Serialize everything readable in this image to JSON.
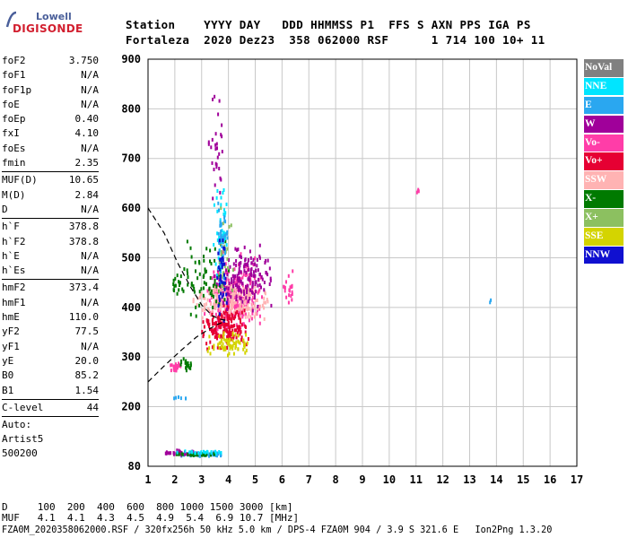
{
  "logo": {
    "line1": "Lowell",
    "line2": "DIGISONDE"
  },
  "header": {
    "line1": "Station    YYYY DAY   DDD HHMMSS P1  FFS S AXN PPS IGA PS",
    "line2": "Fortaleza  2020 Dez23  358 062000 RSF      1 714 100 10+ 11"
  },
  "params_groups": [
    [
      [
        "foF2",
        "3.750"
      ],
      [
        "foF1",
        "N/A"
      ],
      [
        "foF1p",
        "N/A"
      ],
      [
        "foE",
        "N/A"
      ],
      [
        "foEp",
        "0.40"
      ],
      [
        "fxI",
        "4.10"
      ],
      [
        "foEs",
        "N/A"
      ],
      [
        "fmin",
        "2.35"
      ]
    ],
    [
      [
        "MUF(D)",
        "10.65"
      ],
      [
        "M(D)",
        "2.84"
      ],
      [
        "D",
        "N/A"
      ]
    ],
    [
      [
        "h`F",
        "378.8"
      ],
      [
        "h`F2",
        "378.8"
      ],
      [
        "h`E",
        "N/A"
      ],
      [
        "h`Es",
        "N/A"
      ]
    ],
    [
      [
        "hmF2",
        "373.4"
      ],
      [
        "hmF1",
        "N/A"
      ],
      [
        "hmE",
        "110.0"
      ],
      [
        "yF2",
        "77.5"
      ],
      [
        "yF1",
        "N/A"
      ],
      [
        "yE",
        "20.0"
      ],
      [
        "B0",
        "85.2"
      ],
      [
        "B1",
        "1.54"
      ]
    ],
    [
      [
        "C-level",
        "44"
      ]
    ]
  ],
  "autoscaling": {
    "line1": "Auto:",
    "line2": "Artist5",
    "line3": "500200"
  },
  "legend": [
    {
      "label": "NoVal",
      "color": "#808080",
      "text": "#ffffff"
    },
    {
      "label": "NNE",
      "color": "#00e5ff",
      "text": "#ffffff"
    },
    {
      "label": "E",
      "color": "#2aa7f0",
      "text": "#ffffff"
    },
    {
      "label": "W",
      "color": "#a0009a",
      "text": "#ffffff"
    },
    {
      "label": "Vo-",
      "color": "#ff3da8",
      "text": "#ffffff"
    },
    {
      "label": "Vo+",
      "color": "#e60033",
      "text": "#ffffff"
    },
    {
      "label": "SSW",
      "color": "#ffb3b3",
      "text": "#ffffff"
    },
    {
      "label": "X-",
      "color": "#007a00",
      "text": "#ffffff"
    },
    {
      "label": "X+",
      "color": "#8cc060",
      "text": "#ffffff"
    },
    {
      "label": "SSE",
      "color": "#d4d400",
      "text": "#ffffff"
    },
    {
      "label": "NNW",
      "color": "#1010d0",
      "text": "#ffffff"
    }
  ],
  "bottom": {
    "d_line": "D     100  200  400  600  800 1000 1500 3000 [km]",
    "muf_line": "MUF   4.1  4.1  4.3  4.5  4.9  5.4  6.9 10.7 [MHz]",
    "footer": "FZA0M_2020358062000.RSF / 320fx256h 50 kHz 5.0 km / DPS-4 FZA0M 904 / 3.9 S 321.6 E   Ion2Png 1.3.20"
  },
  "chart_data": {
    "type": "scatter",
    "title": "",
    "xlabel": "",
    "ylabel": "",
    "xlim": [
      1,
      17
    ],
    "ylim": [
      80,
      900
    ],
    "x_ticks": [
      1,
      2,
      3,
      4,
      5,
      6,
      7,
      8,
      9,
      10,
      11,
      12,
      13,
      14,
      15,
      16,
      17
    ],
    "y_ticks": [
      80,
      200,
      300,
      400,
      500,
      600,
      700,
      800,
      900
    ],
    "grid": true,
    "legend_position": "right",
    "clusters": [
      {
        "name": "Vo-",
        "color": "#ff3da8",
        "x": [
          3.0,
          5.3
        ],
        "y": [
          330,
          520
        ],
        "n": 260
      },
      {
        "name": "SSW",
        "color": "#ffb3b3",
        "x": [
          2.6,
          5.6
        ],
        "y": [
          360,
          470
        ],
        "n": 200
      },
      {
        "name": "Vo+",
        "color": "#e60033",
        "x": [
          2.9,
          4.8
        ],
        "y": [
          300,
          420
        ],
        "n": 170
      },
      {
        "name": "W",
        "color": "#a0009a",
        "x": [
          3.4,
          5.8
        ],
        "y": [
          380,
          540
        ],
        "n": 170
      },
      {
        "name": "SSE",
        "color": "#d4d400",
        "x": [
          3.0,
          5.0
        ],
        "y": [
          300,
          360
        ],
        "n": 70
      },
      {
        "name": "X-",
        "color": "#007a00",
        "x": [
          2.0,
          4.2
        ],
        "y": [
          360,
          560
        ],
        "n": 70
      },
      {
        "name": "X+",
        "color": "#8cc060",
        "x": [
          3.4,
          4.2
        ],
        "y": [
          380,
          620
        ],
        "n": 40
      },
      {
        "name": "NNE",
        "color": "#00e5ff",
        "x": [
          3.4,
          4.0
        ],
        "y": [
          420,
          700
        ],
        "n": 50
      },
      {
        "name": "E",
        "color": "#2aa7f0",
        "x": [
          3.5,
          4.0
        ],
        "y": [
          440,
          620
        ],
        "n": 40
      },
      {
        "name": "NNW",
        "color": "#1010d0",
        "x": [
          3.5,
          4.0
        ],
        "y": [
          360,
          560
        ],
        "n": 40
      },
      {
        "name": "W",
        "color": "#a0009a",
        "x": [
          3.2,
          3.8
        ],
        "y": [
          600,
          840
        ],
        "n": 30
      },
      {
        "name": "Vo-",
        "color": "#ff3da8",
        "x": [
          1.7,
          2.3
        ],
        "y": [
          270,
          300
        ],
        "n": 25
      },
      {
        "name": "X-",
        "color": "#007a00",
        "x": [
          2.1,
          2.7
        ],
        "y": [
          270,
          310
        ],
        "n": 20
      },
      {
        "name": "X-",
        "color": "#007a00",
        "x": [
          1.7,
          2.3
        ],
        "y": [
          420,
          480
        ],
        "n": 15
      },
      {
        "name": "Vo-",
        "color": "#ff3da8",
        "x": [
          6.0,
          6.5
        ],
        "y": [
          400,
          490
        ],
        "n": 20
      },
      {
        "name": "E",
        "color": "#2aa7f0",
        "x": [
          2.0,
          3.9
        ],
        "y": [
          103,
          112
        ],
        "n": 70
      },
      {
        "name": "W",
        "color": "#a0009a",
        "x": [
          1.3,
          3.0
        ],
        "y": [
          103,
          118
        ],
        "n": 40
      },
      {
        "name": "X-",
        "color": "#007a00",
        "x": [
          2.0,
          3.8
        ],
        "y": [
          104,
          110
        ],
        "n": 30
      },
      {
        "name": "NNE",
        "color": "#00e5ff",
        "x": [
          2.0,
          3.8
        ],
        "y": [
          108,
          115
        ],
        "n": 20
      },
      {
        "name": "E",
        "color": "#2aa7f0",
        "x": [
          1.9,
          2.5
        ],
        "y": [
          218,
          224
        ],
        "n": 6
      },
      {
        "name": "Vo-",
        "color": "#ff3da8",
        "x": [
          11.0,
          11.1
        ],
        "y": [
          630,
          645
        ],
        "n": 4
      },
      {
        "name": "E",
        "color": "#2aa7f0",
        "x": [
          13.7,
          13.8
        ],
        "y": [
          412,
          420
        ],
        "n": 2
      }
    ],
    "curves": [
      {
        "name": "profile-upper",
        "x": [
          1.0,
          1.6,
          2.1,
          2.6,
          3.0,
          3.4,
          3.7,
          3.9
        ],
        "y": [
          600,
          550,
          490,
          440,
          405,
          383,
          376,
          374
        ]
      },
      {
        "name": "profile-lower",
        "x": [
          1.0,
          1.6,
          2.2,
          2.8,
          3.3,
          3.6,
          3.8
        ],
        "y": [
          250,
          282,
          312,
          340,
          357,
          366,
          370
        ]
      }
    ]
  }
}
